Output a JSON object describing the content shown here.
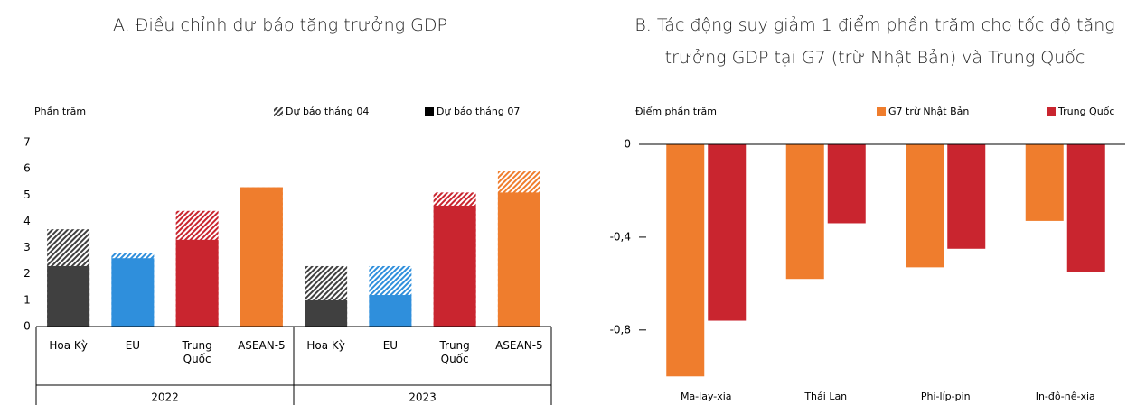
{
  "chart_data": [
    {
      "type": "bar",
      "bar_mode": "overlay",
      "title": "A. Điều chỉnh dự báo tăng trưởng GDP",
      "y_label": "Phần trăm",
      "categories": [
        "Hoa Kỳ",
        "EU",
        "Trung Quốc",
        "ASEAN-5",
        "Hoa Kỳ",
        "EU",
        "Trung Quốc",
        "ASEAN-5"
      ],
      "x_groups": [
        "2022",
        "2023"
      ],
      "category_colors": [
        "#404040",
        "#2f8fdc",
        "#c9252f",
        "#ef7d2d",
        "#404040",
        "#2f8fdc",
        "#c9252f",
        "#ef7d2d"
      ],
      "series": [
        {
          "name": "Dự báo tháng 04",
          "color": "#404040",
          "hatched": true,
          "values": [
            3.7,
            2.8,
            4.4,
            5.3,
            2.3,
            2.3,
            5.1,
            5.9
          ]
        },
        {
          "name": "Dự báo tháng 07",
          "color": "#000000",
          "hatched": false,
          "values": [
            2.3,
            2.6,
            3.3,
            5.3,
            1.0,
            1.2,
            4.6,
            5.1
          ]
        }
      ],
      "ylim": [
        0,
        7
      ],
      "yticks": [
        0,
        1,
        2,
        3,
        4,
        5,
        6,
        7
      ]
    },
    {
      "type": "bar",
      "bar_mode": "group",
      "title": "B. Tác động suy giảm 1 điểm phần trăm cho tốc độ tăng trưởng GDP tại G7 (trừ Nhật Bản) và Trung Quốc",
      "y_label": "Điểm phần trăm",
      "categories": [
        "Ma-lay-xia",
        "Thái Lan",
        "Phi-líp-pin",
        "In-đô-nê-xia"
      ],
      "series": [
        {
          "name": "G7 trừ Nhật Bản",
          "color": "#ef7d2d",
          "values": [
            -1.0,
            -0.58,
            -0.53,
            -0.33
          ]
        },
        {
          "name": "Trung Quốc",
          "color": "#c9252f",
          "values": [
            -0.76,
            -0.34,
            -0.45,
            -0.55
          ]
        }
      ],
      "ylim": [
        -1.03,
        0
      ],
      "yticks": [
        0,
        {
          "value": -0.4,
          "label": "-0,4"
        },
        {
          "value": -0.8,
          "label": "-0,8"
        }
      ]
    }
  ]
}
